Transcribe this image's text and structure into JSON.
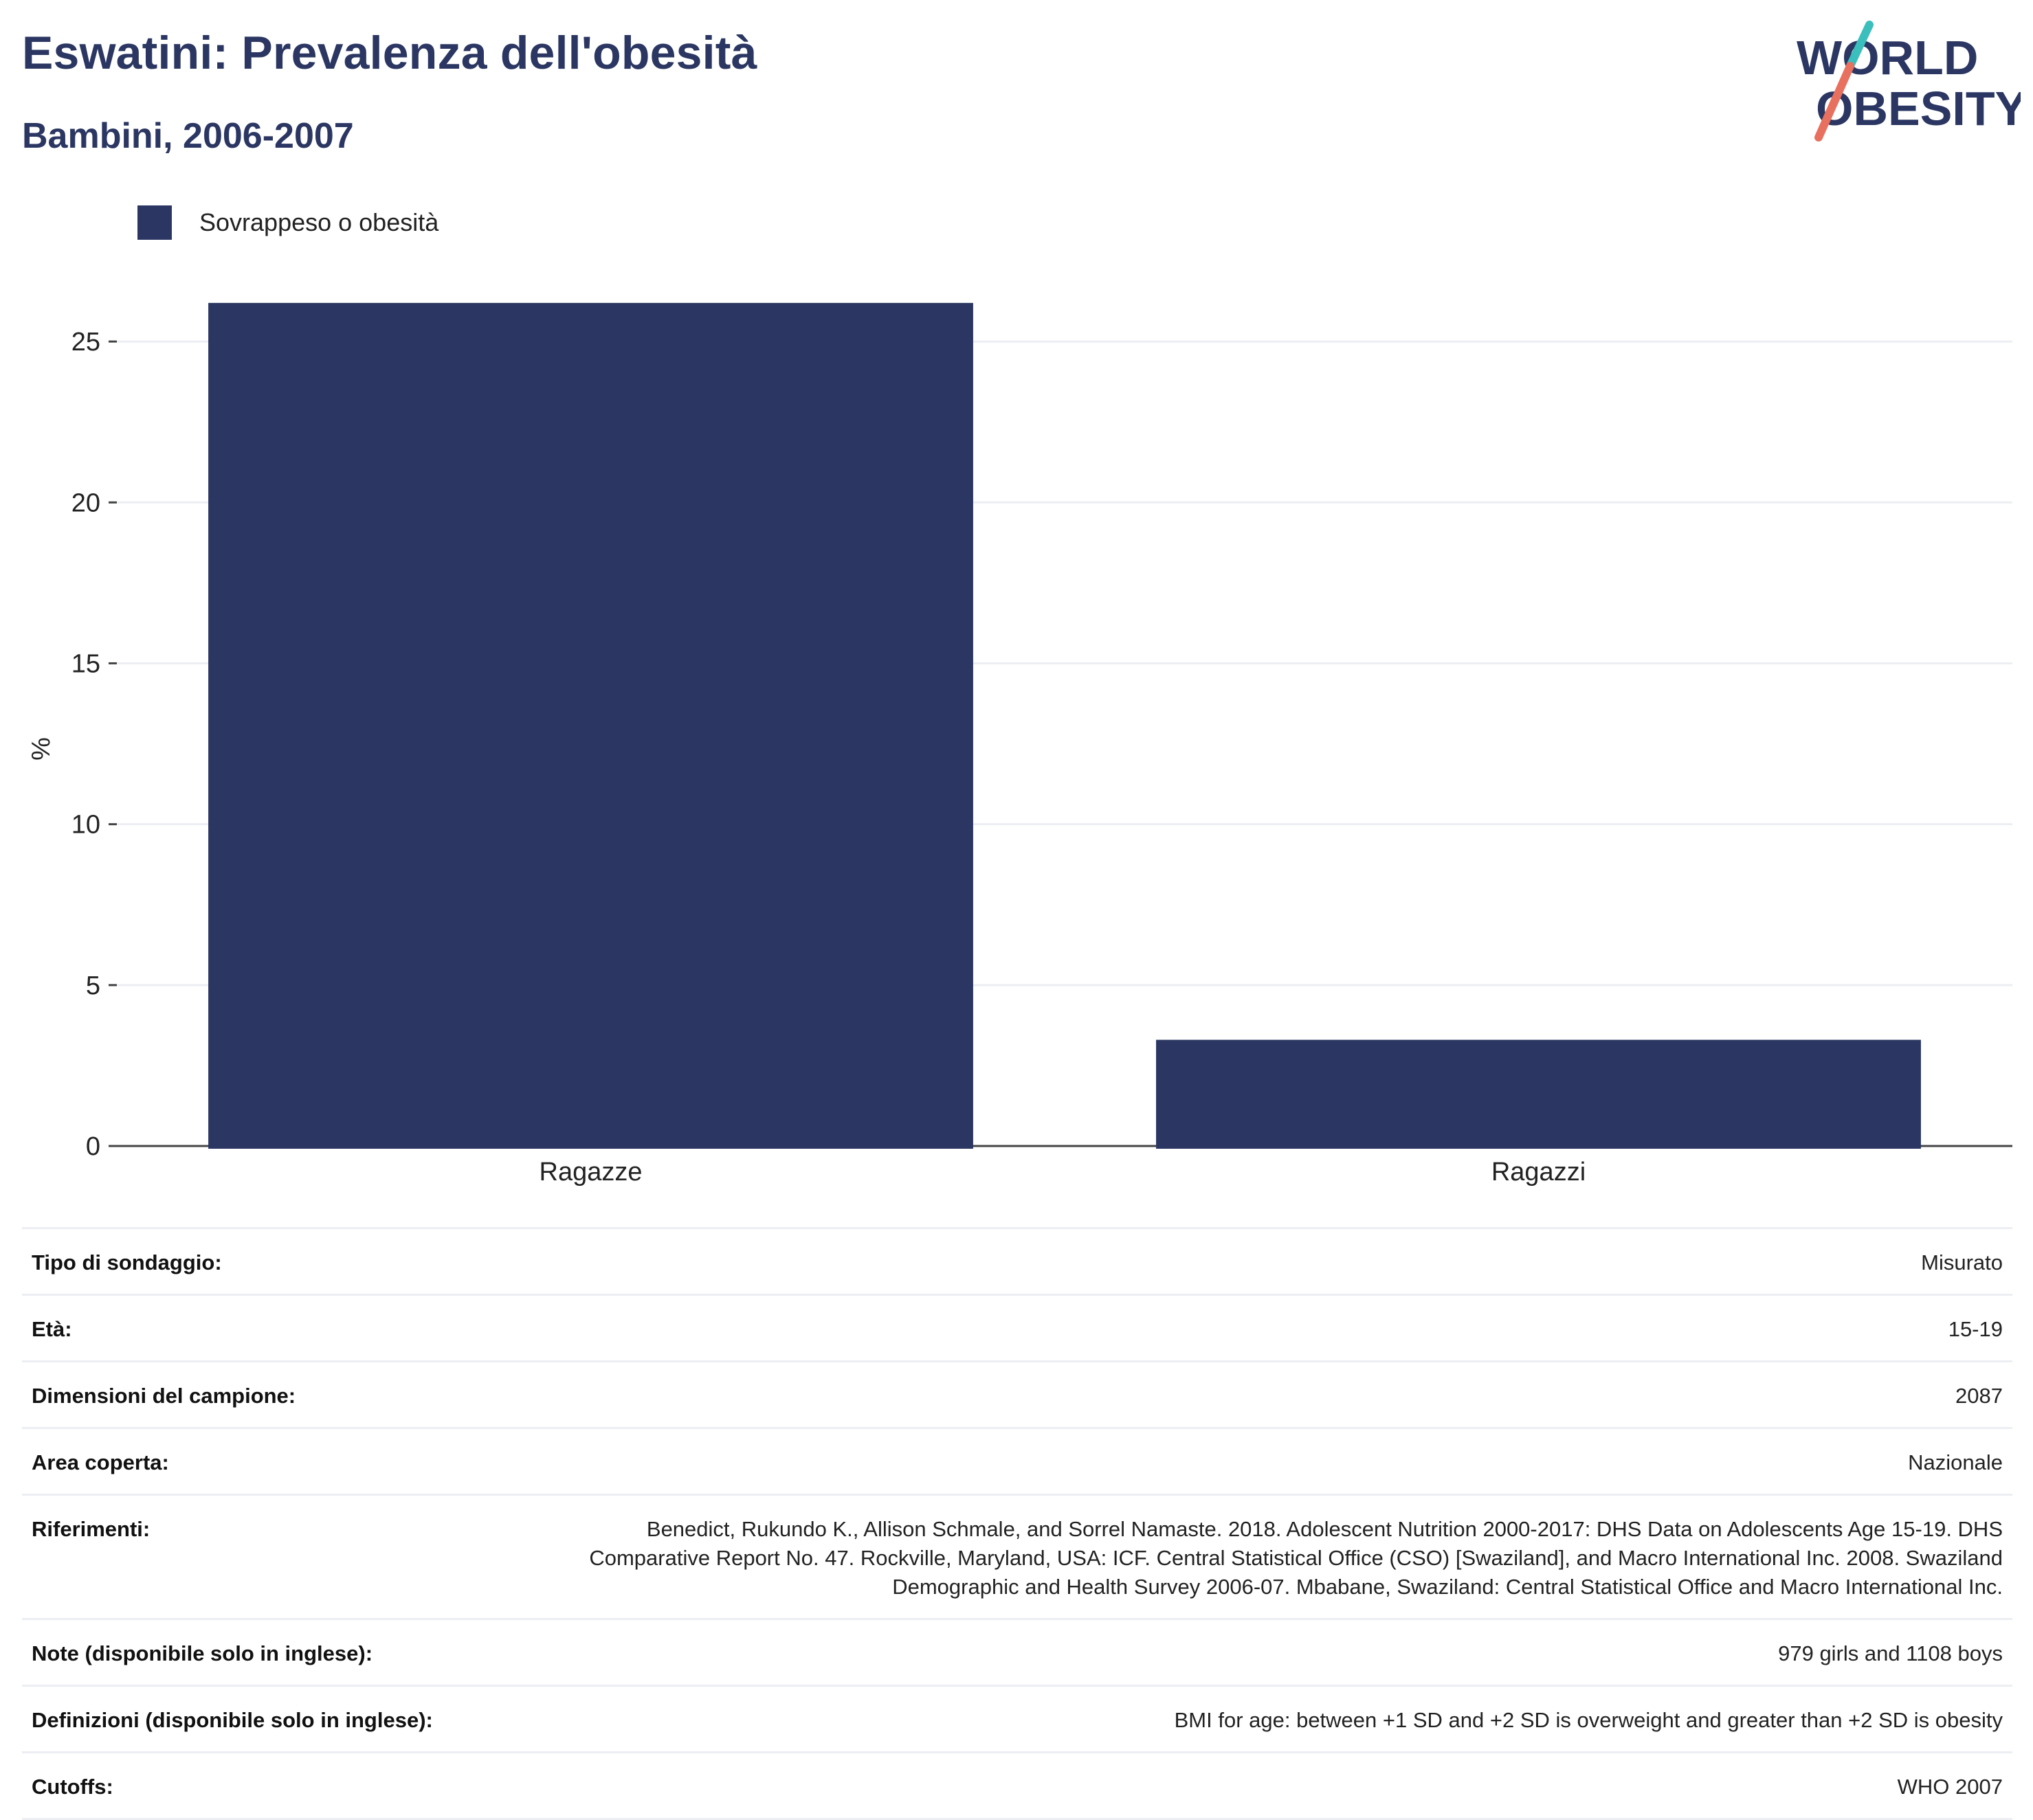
{
  "header": {
    "title": "Eswatini: Prevalenza dell'obesità",
    "subtitle": "Bambini, 2006-2007"
  },
  "logo": {
    "line1": "WORLD",
    "line2": "OBESITY"
  },
  "colors": {
    "bar": "#2b3762",
    "text": "#2b3762",
    "logo_teal": "#3bbfbd",
    "logo_coral": "#e8705f"
  },
  "chart_data": {
    "type": "bar",
    "categories": [
      "Ragazze",
      "Ragazzi"
    ],
    "series": [
      {
        "name": "Sovrappeso o obesità",
        "values": [
          26.2,
          3.3
        ]
      }
    ],
    "ylabel": "%",
    "ylim": [
      0,
      27.5
    ],
    "yticks": [
      0,
      5,
      10,
      15,
      20,
      25
    ],
    "grid": true,
    "legend": "top-left"
  },
  "info": [
    {
      "key": "Tipo di sondaggio:",
      "value": "Misurato"
    },
    {
      "key": "Età:",
      "value": "15-19"
    },
    {
      "key": "Dimensioni del campione:",
      "value": "2087"
    },
    {
      "key": "Area coperta:",
      "value": "Nazionale"
    },
    {
      "key": "Riferimenti:",
      "value": "Benedict, Rukundo K., Allison Schmale, and Sorrel Namaste. 2018. Adolescent Nutrition 2000-2017: DHS Data on Adolescents Age 15-19. DHS Comparative Report No. 47. Rockville, Maryland, USA: ICF. Central Statistical Office (CSO) [Swaziland], and Macro International Inc. 2008. Swaziland Demographic and Health Survey 2006-07. Mbabane, Swaziland: Central Statistical Office and Macro International Inc."
    },
    {
      "key": "Note (disponibile solo in inglese):",
      "value": "979 girls and 1108 boys"
    },
    {
      "key": "Definizioni (disponibile solo in inglese):",
      "value": "BMI for age: between +1 SD and +2 SD is overweight and greater than +2 SD is obesity"
    },
    {
      "key": "Cutoffs:",
      "value": "WHO 2007"
    }
  ]
}
